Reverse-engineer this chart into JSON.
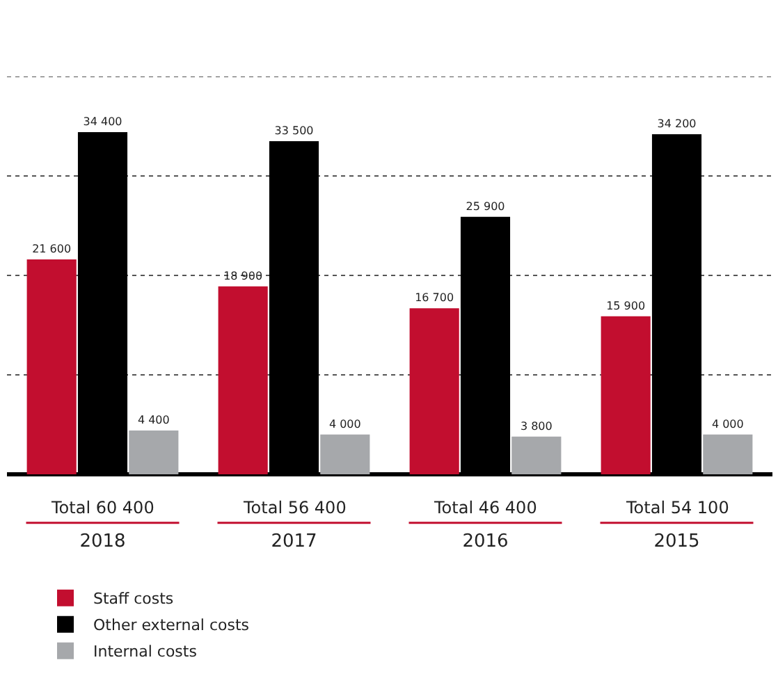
{
  "chart_data": {
    "type": "bar",
    "categories": [
      "2018",
      "2017",
      "2016",
      "2015"
    ],
    "series": [
      {
        "name": "Staff costs",
        "color": "#c20e2f",
        "values": [
          21600,
          18900,
          16700,
          15900
        ],
        "value_labels": [
          "21 600",
          "18 900",
          "16 700",
          "15 900"
        ]
      },
      {
        "name": "Other external costs",
        "color": "#000000",
        "values": [
          34400,
          33500,
          25900,
          34200
        ],
        "value_labels": [
          "34 400",
          "33 500",
          "25 900",
          "34 200"
        ]
      },
      {
        "name": "Internal costs",
        "color": "#a6a8ab",
        "values": [
          4400,
          4000,
          3800,
          4000
        ],
        "value_labels": [
          "4 400",
          "4 000",
          "3 800",
          "4 000"
        ]
      }
    ],
    "totals": [
      "Total 60 400",
      "Total 56 400",
      "Total 46 400",
      "Total 54 100"
    ],
    "ylim": [
      0,
      40000
    ],
    "yticks": [
      {
        "value": 10000,
        "label": null
      },
      {
        "value": 20000,
        "label": null
      },
      {
        "value": 30000,
        "label": null
      },
      {
        "value": 40000,
        "label": null
      }
    ],
    "tick_labels": "x",
    "grid": "y",
    "legend": "bottom left"
  }
}
